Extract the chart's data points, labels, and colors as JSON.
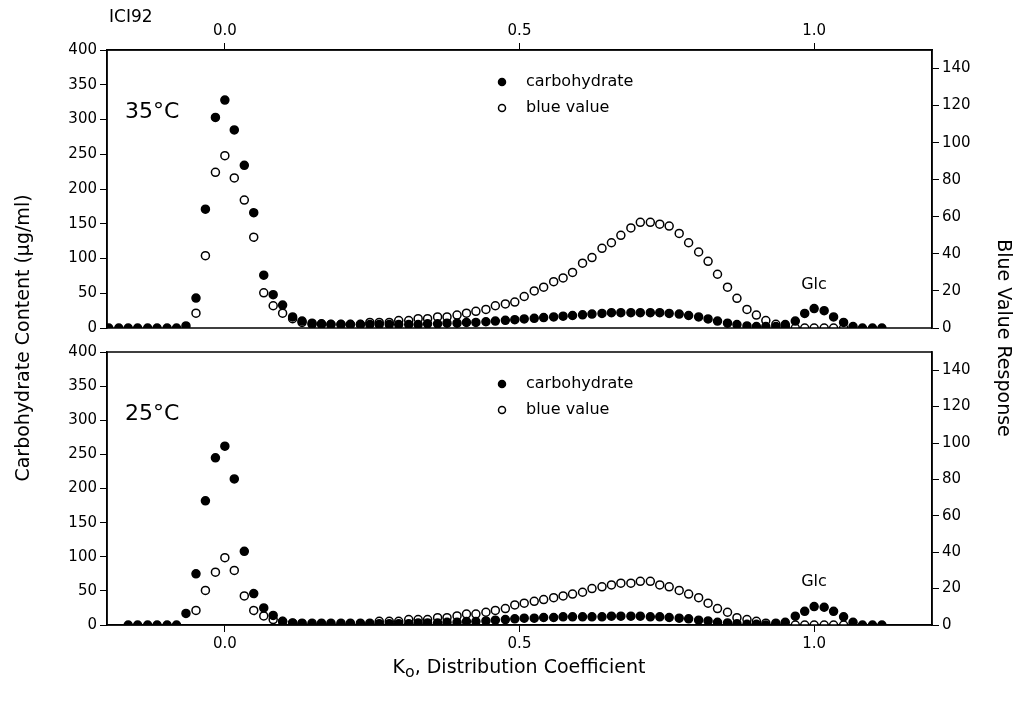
{
  "chart_data": [
    {
      "type": "scatter",
      "title": "ICI92",
      "ylabel": "Carbohydrate Content (μg/ml)",
      "y2label": "Blue Value Response",
      "legend": "top right",
      "marker": "circle",
      "x": [
        -0.197,
        -0.18,
        -0.164,
        -0.148,
        -0.131,
        -0.115,
        -0.098,
        -0.082,
        -0.066,
        -0.049,
        -0.033,
        -0.016,
        0,
        0.016,
        0.033,
        0.049,
        0.066,
        0.082,
        0.098,
        0.115,
        0.131,
        0.148,
        0.164,
        0.18,
        0.197,
        0.213,
        0.23,
        0.246,
        0.262,
        0.279,
        0.295,
        0.312,
        0.328,
        0.344,
        0.361,
        0.377,
        0.394,
        0.41,
        0.426,
        0.443,
        0.459,
        0.476,
        0.492,
        0.508,
        0.525,
        0.541,
        0.558,
        0.574,
        0.59,
        0.607,
        0.623,
        0.64,
        0.656,
        0.672,
        0.689,
        0.705,
        0.722,
        0.738,
        0.754,
        0.771,
        0.787,
        0.804,
        0.82,
        0.836,
        0.853,
        0.869,
        0.886,
        0.902,
        0.918,
        0.935,
        0.951,
        0.968,
        0.984,
        1.0,
        1.017,
        1.033,
        1.05,
        1.066,
        1.082,
        1.099,
        1.115
      ],
      "series": [
        {
          "name": "carbohydrate",
          "color": "#000000",
          "values": [
            0,
            0,
            0,
            0,
            0,
            0,
            0,
            0,
            3,
            43,
            171,
            303,
            328,
            285,
            234,
            166,
            76,
            48,
            33,
            16,
            10,
            7,
            6,
            5,
            5,
            5,
            5,
            5,
            5,
            5,
            5,
            5,
            5,
            6,
            6,
            7,
            7,
            8,
            8,
            9,
            10,
            11,
            12,
            13,
            14,
            15,
            16,
            17,
            18,
            19,
            20,
            21,
            22,
            22,
            22,
            22,
            22,
            22,
            21,
            20,
            18,
            16,
            13,
            10,
            7,
            5,
            3,
            2,
            2,
            2,
            5,
            10,
            21,
            28,
            25,
            16,
            8,
            2,
            0,
            0,
            0
          ]
        },
        {
          "name": "blue value",
          "color": "#000000",
          "axis": "y2",
          "values": [
            null,
            null,
            null,
            null,
            null,
            null,
            null,
            null,
            null,
            8,
            39,
            84,
            93,
            81,
            69,
            49,
            19,
            12,
            8,
            5,
            3,
            2,
            2,
            2,
            2,
            2,
            2,
            3,
            3,
            3,
            4,
            4,
            5,
            5,
            6,
            6,
            7,
            8,
            9,
            10,
            12,
            13,
            14,
            17,
            20,
            22,
            25,
            27,
            30,
            35,
            38,
            43,
            46,
            50,
            54,
            57,
            57,
            56,
            55,
            51,
            46,
            41,
            36,
            29,
            22,
            16,
            10,
            7,
            4,
            2,
            1,
            0,
            0,
            0,
            0,
            0,
            0,
            null,
            null,
            null,
            null
          ]
        }
      ],
      "xlim": [
        -0.2,
        1.2
      ],
      "xticks": [
        {
          "value": 0,
          "label": "0.0"
        },
        {
          "value": 0.5,
          "label": "0.5"
        },
        {
          "value": 1,
          "label": "1.0"
        }
      ],
      "ylim": [
        0,
        400
      ],
      "yticks": [
        0,
        50,
        100,
        150,
        200,
        250,
        300,
        350,
        400
      ],
      "y2lim": [
        0,
        150
      ],
      "y2ticks": [
        0,
        20,
        40,
        60,
        80,
        100,
        120,
        140
      ],
      "annotations": [
        "35°C",
        "Glc"
      ]
    },
    {
      "type": "scatter",
      "xlabel": "K$_{o}$, Distribution Coefficient",
      "legend": "top right",
      "marker": "circle",
      "x": [
        -0.164,
        -0.148,
        -0.131,
        -0.115,
        -0.098,
        -0.082,
        -0.066,
        -0.049,
        -0.033,
        -0.016,
        0,
        0.016,
        0.033,
        0.049,
        0.066,
        0.082,
        0.098,
        0.115,
        0.131,
        0.148,
        0.164,
        0.18,
        0.197,
        0.213,
        0.23,
        0.246,
        0.262,
        0.279,
        0.295,
        0.312,
        0.328,
        0.344,
        0.361,
        0.377,
        0.394,
        0.41,
        0.426,
        0.443,
        0.459,
        0.476,
        0.492,
        0.508,
        0.525,
        0.541,
        0.558,
        0.574,
        0.59,
        0.607,
        0.623,
        0.64,
        0.656,
        0.672,
        0.689,
        0.705,
        0.722,
        0.738,
        0.754,
        0.771,
        0.787,
        0.804,
        0.82,
        0.836,
        0.853,
        0.869,
        0.886,
        0.902,
        0.918,
        0.935,
        0.951,
        0.968,
        0.984,
        1.0,
        1.017,
        1.033,
        1.05,
        1.066,
        1.082,
        1.099,
        1.115
      ],
      "series": [
        {
          "name": "carbohydrate",
          "color": "#000000",
          "values": [
            0,
            0,
            0,
            0,
            0,
            0,
            17,
            75,
            182,
            245,
            262,
            214,
            108,
            46,
            25,
            14,
            5,
            3,
            2,
            1,
            1,
            1,
            1,
            1,
            1,
            1,
            2,
            2,
            2,
            2,
            3,
            3,
            3,
            4,
            4,
            5,
            5,
            6,
            7,
            8,
            9,
            10,
            10,
            11,
            11,
            12,
            12,
            12,
            12,
            12,
            13,
            13,
            13,
            13,
            12,
            12,
            11,
            10,
            9,
            7,
            6,
            4,
            3,
            2,
            1,
            1,
            0,
            1,
            4,
            13,
            20,
            27,
            26,
            20,
            12,
            4,
            0,
            0,
            0
          ]
        },
        {
          "name": "blue value",
          "color": "#000000",
          "axis": "y2",
          "values": [
            null,
            null,
            null,
            null,
            null,
            null,
            null,
            8,
            19,
            29,
            37,
            30,
            16,
            8,
            5,
            3,
            2,
            1,
            1,
            1,
            1,
            1,
            1,
            1,
            1,
            1,
            2,
            2,
            2,
            3,
            3,
            3,
            4,
            4,
            5,
            6,
            6,
            7,
            8,
            9,
            11,
            12,
            13,
            14,
            15,
            16,
            17,
            18,
            20,
            21,
            22,
            23,
            23,
            24,
            24,
            22,
            21,
            19,
            17,
            15,
            12,
            9,
            7,
            4,
            3,
            2,
            1,
            1,
            null,
            0,
            0,
            0,
            0,
            0,
            0,
            null,
            null,
            null,
            null
          ]
        }
      ],
      "xlim": [
        -0.2,
        1.2
      ],
      "xticks": [
        {
          "value": 0,
          "label": "0.0"
        },
        {
          "value": 0.5,
          "label": "0.5"
        },
        {
          "value": 1,
          "label": "1.0"
        }
      ],
      "ylim": [
        0,
        400
      ],
      "yticks": [
        0,
        50,
        100,
        150,
        200,
        250,
        300,
        350,
        400
      ],
      "y2lim": [
        0,
        150
      ],
      "y2ticks": [
        0,
        20,
        40,
        60,
        80,
        100,
        120,
        140
      ],
      "annotations": [
        "25°C",
        "Glc"
      ]
    }
  ]
}
